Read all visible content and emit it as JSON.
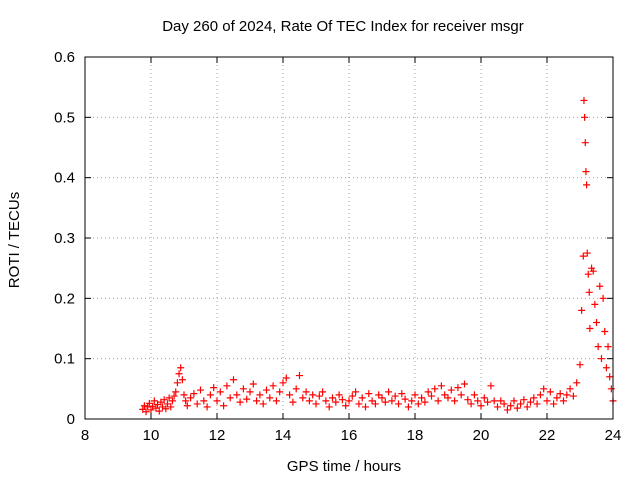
{
  "chart_data": {
    "type": "scatter",
    "title": "Day 260 of 2024, Rate Of TEC Index for receiver msgr",
    "xlabel": "GPS time / hours",
    "ylabel": "ROTI / TECUs",
    "xlim": [
      8,
      24
    ],
    "ylim": [
      0,
      0.6
    ],
    "xticks": [
      8,
      10,
      12,
      14,
      16,
      18,
      20,
      22,
      24
    ],
    "xtick_labels": [
      "8",
      "10",
      "12",
      "14",
      "16",
      "18",
      "20",
      "22",
      "24"
    ],
    "yticks": [
      0,
      0.1,
      0.2,
      0.3,
      0.4,
      0.5,
      0.6
    ],
    "ytick_labels": [
      "0",
      "0.1",
      "0.2",
      "0.3",
      "0.4",
      "0.5",
      "0.6"
    ],
    "grid": true,
    "marker": "+",
    "color": "#ff0000",
    "series": [
      {
        "name": "ROTI",
        "points": [
          [
            9.75,
            0.016
          ],
          [
            9.8,
            0.022
          ],
          [
            9.85,
            0.012
          ],
          [
            9.9,
            0.02
          ],
          [
            9.95,
            0.026
          ],
          [
            10.0,
            0.015
          ],
          [
            10.05,
            0.021
          ],
          [
            10.1,
            0.03
          ],
          [
            10.15,
            0.018
          ],
          [
            10.2,
            0.024
          ],
          [
            10.25,
            0.013
          ],
          [
            10.3,
            0.028
          ],
          [
            10.35,
            0.02
          ],
          [
            10.4,
            0.032
          ],
          [
            10.45,
            0.017
          ],
          [
            10.5,
            0.025
          ],
          [
            10.55,
            0.035
          ],
          [
            10.6,
            0.02
          ],
          [
            10.65,
            0.03
          ],
          [
            10.7,
            0.038
          ],
          [
            10.75,
            0.045
          ],
          [
            10.8,
            0.06
          ],
          [
            10.85,
            0.075
          ],
          [
            10.9,
            0.085
          ],
          [
            10.95,
            0.065
          ],
          [
            11.0,
            0.04
          ],
          [
            11.05,
            0.03
          ],
          [
            11.1,
            0.022
          ],
          [
            11.2,
            0.035
          ],
          [
            11.3,
            0.042
          ],
          [
            11.4,
            0.025
          ],
          [
            11.5,
            0.048
          ],
          [
            11.6,
            0.03
          ],
          [
            11.7,
            0.02
          ],
          [
            11.8,
            0.04
          ],
          [
            11.9,
            0.052
          ],
          [
            12.0,
            0.03
          ],
          [
            12.1,
            0.045
          ],
          [
            12.2,
            0.022
          ],
          [
            12.3,
            0.055
          ],
          [
            12.4,
            0.035
          ],
          [
            12.5,
            0.065
          ],
          [
            12.6,
            0.04
          ],
          [
            12.7,
            0.028
          ],
          [
            12.8,
            0.05
          ],
          [
            12.9,
            0.033
          ],
          [
            13.0,
            0.045
          ],
          [
            13.1,
            0.058
          ],
          [
            13.2,
            0.03
          ],
          [
            13.3,
            0.04
          ],
          [
            13.4,
            0.025
          ],
          [
            13.5,
            0.048
          ],
          [
            13.6,
            0.035
          ],
          [
            13.7,
            0.055
          ],
          [
            13.8,
            0.03
          ],
          [
            13.9,
            0.045
          ],
          [
            14.0,
            0.06
          ],
          [
            14.1,
            0.068
          ],
          [
            14.2,
            0.04
          ],
          [
            14.3,
            0.028
          ],
          [
            14.4,
            0.05
          ],
          [
            14.5,
            0.072
          ],
          [
            14.6,
            0.035
          ],
          [
            14.7,
            0.045
          ],
          [
            14.8,
            0.03
          ],
          [
            14.9,
            0.04
          ],
          [
            15.0,
            0.025
          ],
          [
            15.1,
            0.038
          ],
          [
            15.2,
            0.045
          ],
          [
            15.3,
            0.03
          ],
          [
            15.4,
            0.02
          ],
          [
            15.5,
            0.035
          ],
          [
            15.6,
            0.028
          ],
          [
            15.7,
            0.04
          ],
          [
            15.8,
            0.032
          ],
          [
            15.9,
            0.022
          ],
          [
            16.0,
            0.03
          ],
          [
            16.1,
            0.038
          ],
          [
            16.2,
            0.045
          ],
          [
            16.3,
            0.025
          ],
          [
            16.4,
            0.035
          ],
          [
            16.5,
            0.02
          ],
          [
            16.6,
            0.042
          ],
          [
            16.7,
            0.03
          ],
          [
            16.8,
            0.025
          ],
          [
            16.9,
            0.04
          ],
          [
            17.0,
            0.035
          ],
          [
            17.1,
            0.028
          ],
          [
            17.2,
            0.045
          ],
          [
            17.3,
            0.03
          ],
          [
            17.4,
            0.038
          ],
          [
            17.5,
            0.025
          ],
          [
            17.6,
            0.042
          ],
          [
            17.7,
            0.033
          ],
          [
            17.8,
            0.02
          ],
          [
            17.9,
            0.03
          ],
          [
            18.0,
            0.04
          ],
          [
            18.1,
            0.025
          ],
          [
            18.2,
            0.035
          ],
          [
            18.3,
            0.028
          ],
          [
            18.4,
            0.045
          ],
          [
            18.5,
            0.038
          ],
          [
            18.6,
            0.05
          ],
          [
            18.7,
            0.03
          ],
          [
            18.8,
            0.055
          ],
          [
            18.9,
            0.04
          ],
          [
            19.0,
            0.035
          ],
          [
            19.1,
            0.048
          ],
          [
            19.2,
            0.03
          ],
          [
            19.3,
            0.052
          ],
          [
            19.4,
            0.04
          ],
          [
            19.5,
            0.058
          ],
          [
            19.6,
            0.032
          ],
          [
            19.7,
            0.025
          ],
          [
            19.8,
            0.04
          ],
          [
            19.9,
            0.03
          ],
          [
            20.0,
            0.022
          ],
          [
            20.1,
            0.035
          ],
          [
            20.2,
            0.028
          ],
          [
            20.3,
            0.055
          ],
          [
            20.4,
            0.03
          ],
          [
            20.5,
            0.02
          ],
          [
            20.6,
            0.03
          ],
          [
            20.7,
            0.025
          ],
          [
            20.8,
            0.015
          ],
          [
            20.9,
            0.022
          ],
          [
            21.0,
            0.03
          ],
          [
            21.1,
            0.018
          ],
          [
            21.2,
            0.025
          ],
          [
            21.3,
            0.032
          ],
          [
            21.4,
            0.02
          ],
          [
            21.5,
            0.028
          ],
          [
            21.6,
            0.035
          ],
          [
            21.7,
            0.025
          ],
          [
            21.8,
            0.04
          ],
          [
            21.9,
            0.05
          ],
          [
            22.0,
            0.03
          ],
          [
            22.1,
            0.045
          ],
          [
            22.2,
            0.025
          ],
          [
            22.3,
            0.035
          ],
          [
            22.4,
            0.042
          ],
          [
            22.5,
            0.03
          ],
          [
            22.6,
            0.04
          ],
          [
            22.7,
            0.05
          ],
          [
            22.8,
            0.038
          ],
          [
            22.9,
            0.06
          ],
          [
            23.0,
            0.09
          ],
          [
            23.05,
            0.18
          ],
          [
            23.1,
            0.27
          ],
          [
            23.12,
            0.528
          ],
          [
            23.14,
            0.5
          ],
          [
            23.16,
            0.458
          ],
          [
            23.18,
            0.41
          ],
          [
            23.2,
            0.388
          ],
          [
            23.22,
            0.275
          ],
          [
            23.25,
            0.24
          ],
          [
            23.28,
            0.21
          ],
          [
            23.3,
            0.15
          ],
          [
            23.35,
            0.25
          ],
          [
            23.4,
            0.245
          ],
          [
            23.45,
            0.19
          ],
          [
            23.5,
            0.16
          ],
          [
            23.55,
            0.12
          ],
          [
            23.6,
            0.22
          ],
          [
            23.65,
            0.1
          ],
          [
            23.7,
            0.2
          ],
          [
            23.75,
            0.145
          ],
          [
            23.8,
            0.085
          ],
          [
            23.85,
            0.12
          ],
          [
            23.9,
            0.07
          ],
          [
            23.95,
            0.05
          ],
          [
            24.0,
            0.03
          ]
        ]
      }
    ]
  }
}
